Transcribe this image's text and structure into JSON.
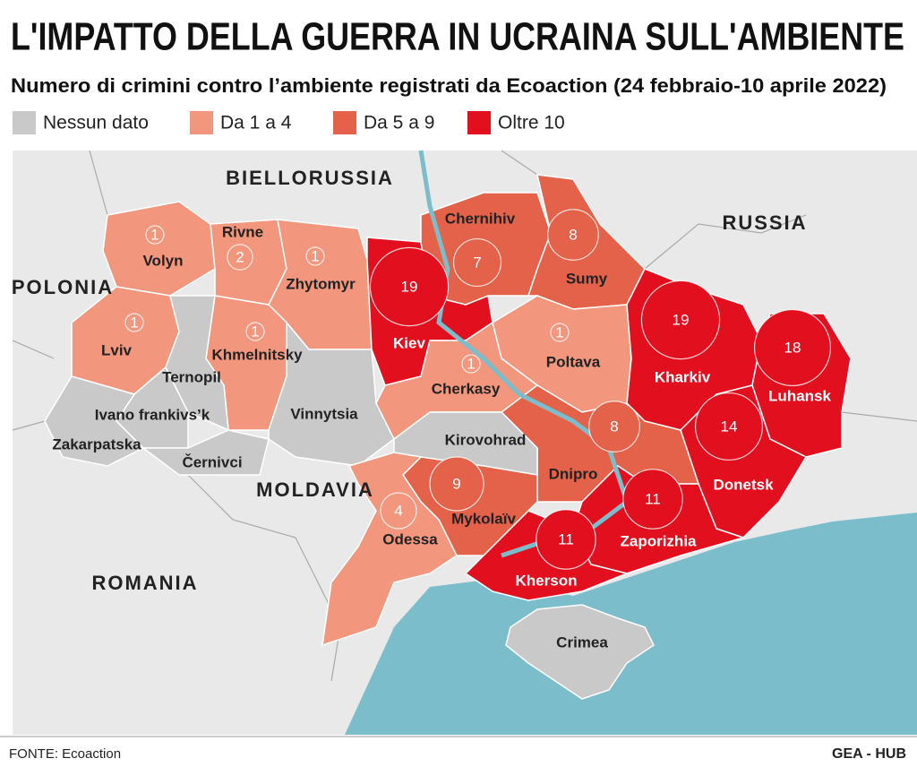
{
  "title": "L'IMPATTO DELLA GUERRA IN UCRAINA SULL'AMBIENTE",
  "subtitle": "Numero di crimini contro l’ambiente registrati da Ecoaction (24 febbraio-10 aprile 2022)",
  "legend": [
    {
      "label": "Nessun dato",
      "color": "#c9c9c9"
    },
    {
      "label": "Da 1 a 4",
      "color": "#f2977e"
    },
    {
      "label": "Da 5 a 9",
      "color": "#e4614a"
    },
    {
      "label": "Oltre 10",
      "color": "#e2101f"
    }
  ],
  "countries": [
    "BIELLORUSSIA",
    "RUSSIA",
    "POLONIA",
    "MOLDAVIA",
    "ROMANIA"
  ],
  "regions": [
    {
      "name": "Volyn",
      "count": 1,
      "color": "#f2977e"
    },
    {
      "name": "Rivne",
      "count": 2,
      "color": "#f2977e"
    },
    {
      "name": "Zhytomyr",
      "count": 1,
      "color": "#f2977e"
    },
    {
      "name": "Lviv",
      "count": 1,
      "color": "#f2977e"
    },
    {
      "name": "Khmelnitsky",
      "count": 1,
      "color": "#f2977e"
    },
    {
      "name": "Ternopil",
      "color": "#c9c9c9"
    },
    {
      "name": "Ivano frankivs’k",
      "color": "#c9c9c9"
    },
    {
      "name": "Zakarpatska",
      "color": "#c9c9c9"
    },
    {
      "name": "Černivci",
      "color": "#c9c9c9"
    },
    {
      "name": "Vinnytsia",
      "color": "#c9c9c9"
    },
    {
      "name": "Kiev",
      "count": 19,
      "color": "#e2101f"
    },
    {
      "name": "Chernihiv",
      "count": 7,
      "color": "#e4614a"
    },
    {
      "name": "Sumy",
      "count": 8,
      "color": "#e4614a"
    },
    {
      "name": "Poltava",
      "count": 1,
      "color": "#f2977e"
    },
    {
      "name": "Cherkasy",
      "count": 1,
      "color": "#f2977e"
    },
    {
      "name": "Kharkiv",
      "count": 19,
      "color": "#e2101f"
    },
    {
      "name": "Luhansk",
      "count": 18,
      "color": "#e2101f"
    },
    {
      "name": "Donetsk",
      "count": 14,
      "color": "#e2101f"
    },
    {
      "name": "Dnipro",
      "count": 8,
      "color": "#e4614a"
    },
    {
      "name": "Kirovohrad",
      "color": "#c9c9c9"
    },
    {
      "name": "Zaporizhia",
      "count": 11,
      "color": "#e2101f"
    },
    {
      "name": "Kherson",
      "count": 11,
      "color": "#e2101f"
    },
    {
      "name": "Mykolaïv",
      "count": 9,
      "color": "#e4614a"
    },
    {
      "name": "Odessa",
      "count": 4,
      "color": "#f2977e"
    },
    {
      "name": "Crimea",
      "color": "#c9c9c9"
    }
  ],
  "source": "FONTE: Ecoaction",
  "credit": "GEA - HUB"
}
